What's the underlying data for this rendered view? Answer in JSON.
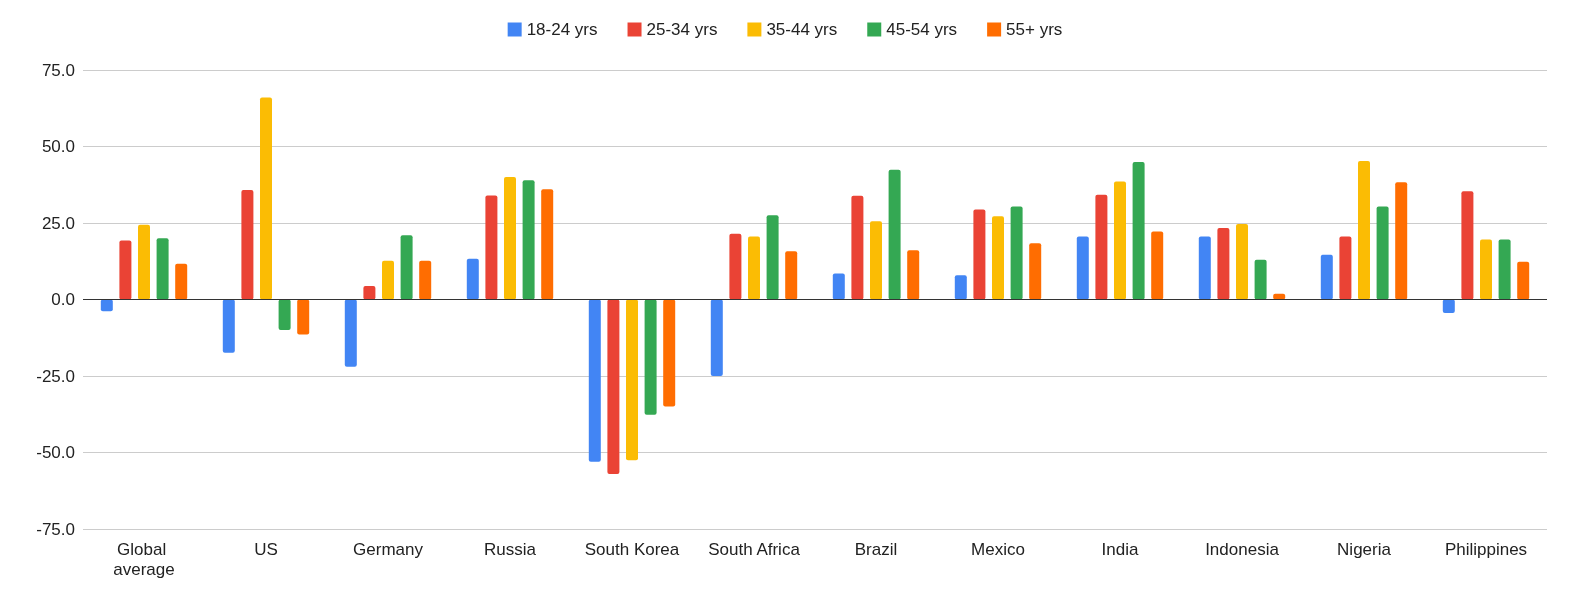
{
  "chart_data": {
    "type": "bar",
    "categories": [
      "Global average",
      "US",
      "Germany",
      "Russia",
      "South Korea",
      "South Africa",
      "Brazil",
      "Mexico",
      "India",
      "Indonesia",
      "Nigeria",
      "Philippines"
    ],
    "series": [
      {
        "name": "18-24 yrs",
        "color": "#4285f4",
        "values": [
          -3.8,
          -17.4,
          -22,
          13.3,
          -53,
          -25,
          8.5,
          7.9,
          20.6,
          20.6,
          14.6,
          -4.4
        ]
      },
      {
        "name": "25-34 yrs",
        "color": "#ea4335",
        "values": [
          19.3,
          35.8,
          4.4,
          34,
          -57,
          21.5,
          33.9,
          29.4,
          34.2,
          23.4,
          20.6,
          35.4
        ]
      },
      {
        "name": "35-44 yrs",
        "color": "#fbbc04",
        "values": [
          24.4,
          66,
          12.7,
          40,
          -52.5,
          20.6,
          25.6,
          27.2,
          38.6,
          24.7,
          45.3,
          19.6
        ]
      },
      {
        "name": "45-54 yrs",
        "color": "#34a853",
        "values": [
          20,
          -10,
          21,
          39,
          -37.7,
          27.5,
          42.4,
          30.4,
          44.9,
          13,
          30.4,
          19.6
        ]
      },
      {
        "name": "55+ yrs",
        "color": "#ff6d01",
        "values": [
          11.7,
          -11.4,
          12.7,
          36,
          -35,
          15.8,
          16.1,
          18.4,
          22.2,
          1.9,
          38.3,
          12.3
        ]
      }
    ],
    "ylim": [
      -75,
      75
    ],
    "yticks": [
      {
        "value": -75,
        "label": "-75.0"
      },
      {
        "value": -50,
        "label": "-50.0"
      },
      {
        "value": -25,
        "label": "-25.0"
      },
      {
        "value": 0,
        "label": "0.0"
      },
      {
        "value": 25,
        "label": "25.0"
      },
      {
        "value": 50,
        "label": "50.0"
      },
      {
        "value": 75,
        "label": "75.0"
      }
    ],
    "grid": "y",
    "legend": "top"
  }
}
